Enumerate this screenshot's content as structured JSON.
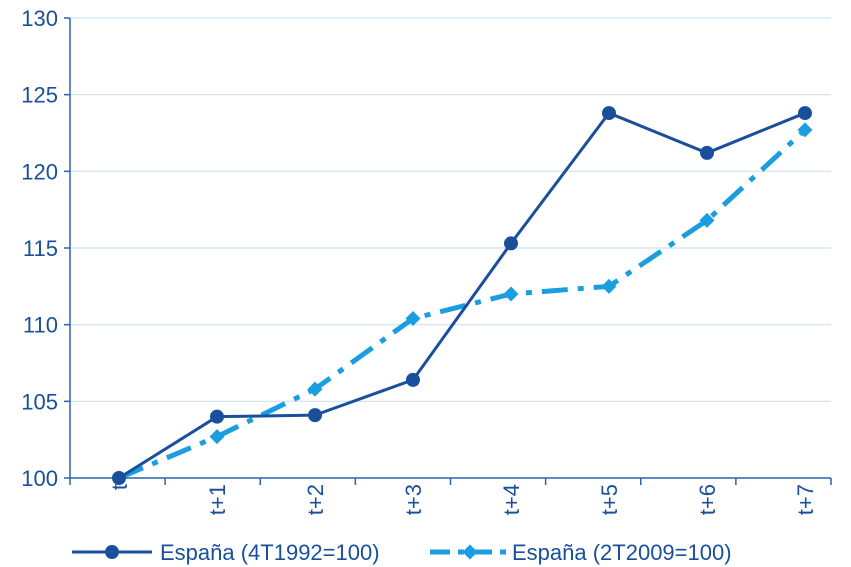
{
  "chart_data": {
    "type": "line",
    "title": "",
    "xlabel": "",
    "ylabel": "",
    "categories": [
      "t",
      "t+1",
      "t+2",
      "t+3",
      "t+4",
      "t+5",
      "t+6",
      "t+7"
    ],
    "ylim": [
      100,
      130
    ],
    "yticks": [
      100,
      105,
      110,
      115,
      120,
      125,
      130
    ],
    "grid": "horizontal",
    "legend_position": "bottom",
    "series": [
      {
        "name": "España (4T1992=100)",
        "values": [
          100.0,
          104.0,
          104.1,
          106.4,
          115.3,
          123.8,
          121.2,
          123.8
        ],
        "color": "#1a4f9c",
        "line_style": "solid",
        "marker": "circle"
      },
      {
        "name": "España (2T2009=100)",
        "values": [
          100.0,
          102.7,
          105.8,
          110.4,
          112.0,
          112.5,
          116.8,
          122.7
        ],
        "color": "#1a9ee0",
        "line_style": "dash-dot",
        "marker": "diamond"
      }
    ],
    "colors": {
      "axis_text": "#1a4f9c",
      "axis_line": "#2a62b0",
      "grid": "#cde3f5"
    }
  }
}
